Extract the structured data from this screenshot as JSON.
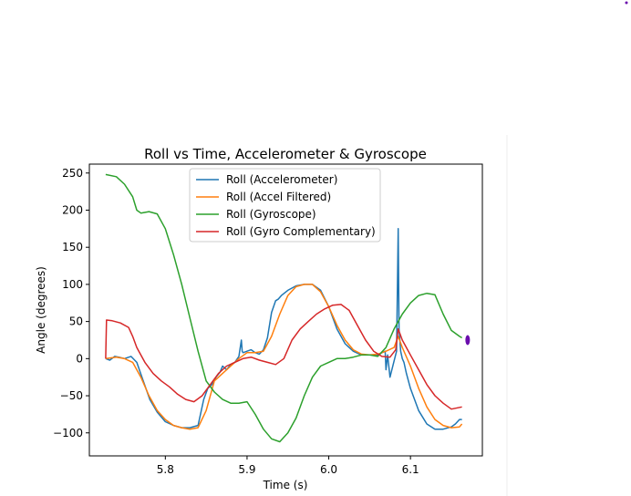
{
  "chart_data": {
    "type": "line",
    "title": "Roll vs Time, Accelerometer & Gyroscope",
    "xlabel": "Time (s)",
    "ylabel": "Angle (degrees)",
    "xlim": [
      5.707,
      6.188
    ],
    "ylim": [
      -131,
      262
    ],
    "x_ticks": [
      5.8,
      5.9,
      6.0,
      6.1
    ],
    "x_tick_labels": [
      "5.8",
      "5.9",
      "6.0",
      "6.1"
    ],
    "y_ticks": [
      -100,
      -50,
      0,
      50,
      100,
      150,
      200,
      250
    ],
    "y_tick_labels": [
      "−100",
      "−50",
      "0",
      "50",
      "100",
      "150",
      "200",
      "250"
    ],
    "grid": false,
    "legend_position": "upper-center",
    "series": [
      {
        "name": "Roll (Accelerometer)",
        "color": "#1f77b4",
        "x": [
          5.727,
          5.732,
          5.738,
          5.743,
          5.75,
          5.758,
          5.765,
          5.773,
          5.781,
          5.79,
          5.8,
          5.81,
          5.82,
          5.83,
          5.84,
          5.847,
          5.852,
          5.857,
          5.862,
          5.867,
          5.87,
          5.875,
          5.88,
          5.885,
          5.89,
          5.893,
          5.894,
          5.895,
          5.9,
          5.905,
          5.91,
          5.915,
          5.92,
          5.925,
          5.93,
          5.935,
          5.938,
          5.942,
          5.95,
          5.96,
          5.97,
          5.98,
          5.99,
          6.0,
          6.01,
          6.02,
          6.03,
          6.04,
          6.05,
          6.06,
          6.065,
          6.069,
          6.07,
          6.072,
          6.075,
          6.08,
          6.083,
          6.085,
          6.086,
          6.087,
          6.088,
          6.09,
          6.092,
          6.095,
          6.1,
          6.11,
          6.12,
          6.13,
          6.14,
          6.15,
          6.155,
          6.16,
          6.163
        ],
        "y": [
          0,
          -2,
          3,
          2,
          0,
          3,
          -5,
          -30,
          -55,
          -72,
          -85,
          -90,
          -93,
          -93,
          -90,
          -55,
          -40,
          -35,
          -25,
          -18,
          -10,
          -15,
          -8,
          -5,
          3,
          25,
          10,
          8,
          10,
          12,
          8,
          6,
          12,
          28,
          62,
          78,
          80,
          85,
          92,
          98,
          100,
          100,
          92,
          70,
          40,
          20,
          10,
          5,
          5,
          5,
          8,
          10,
          -15,
          5,
          -25,
          -3,
          10,
          175,
          40,
          25,
          10,
          0,
          -5,
          -20,
          -40,
          -70,
          -88,
          -95,
          -95,
          -92,
          -88,
          -82,
          -82
        ]
      },
      {
        "name": "Roll (Accel Filtered)",
        "color": "#ff7f0e",
        "x": [
          5.727,
          5.74,
          5.75,
          5.76,
          5.77,
          5.78,
          5.79,
          5.8,
          5.81,
          5.82,
          5.83,
          5.84,
          5.85,
          5.86,
          5.87,
          5.88,
          5.89,
          5.9,
          5.91,
          5.92,
          5.93,
          5.94,
          5.95,
          5.96,
          5.97,
          5.98,
          5.99,
          6.0,
          6.01,
          6.02,
          6.03,
          6.04,
          6.05,
          6.06,
          6.07,
          6.08,
          6.085,
          6.09,
          6.1,
          6.11,
          6.12,
          6.13,
          6.14,
          6.15,
          6.16,
          6.163
        ],
        "y": [
          0,
          2,
          0,
          -5,
          -25,
          -50,
          -70,
          -82,
          -90,
          -93,
          -95,
          -93,
          -70,
          -30,
          -20,
          -10,
          0,
          8,
          8,
          10,
          30,
          60,
          85,
          97,
          100,
          100,
          90,
          70,
          45,
          25,
          12,
          6,
          5,
          6,
          10,
          15,
          30,
          15,
          -10,
          -40,
          -65,
          -82,
          -90,
          -93,
          -92,
          -88
        ]
      },
      {
        "name": "Roll (Gyroscope)",
        "color": "#2ca02c",
        "x": [
          5.727,
          5.74,
          5.75,
          5.76,
          5.765,
          5.77,
          5.78,
          5.79,
          5.8,
          5.81,
          5.82,
          5.83,
          5.84,
          5.85,
          5.86,
          5.87,
          5.88,
          5.89,
          5.9,
          5.91,
          5.92,
          5.93,
          5.94,
          5.95,
          5.96,
          5.97,
          5.98,
          5.99,
          6.0,
          6.01,
          6.02,
          6.03,
          6.04,
          6.05,
          6.06,
          6.07,
          6.08,
          6.09,
          6.1,
          6.11,
          6.12,
          6.13,
          6.14,
          6.15,
          6.16,
          6.163
        ],
        "y": [
          248,
          245,
          235,
          218,
          200,
          196,
          198,
          195,
          175,
          140,
          100,
          55,
          10,
          -30,
          -45,
          -55,
          -60,
          -60,
          -58,
          -75,
          -95,
          -108,
          -112,
          -100,
          -80,
          -50,
          -25,
          -10,
          -5,
          0,
          0,
          2,
          5,
          5,
          3,
          15,
          40,
          60,
          75,
          85,
          88,
          86,
          60,
          38,
          30,
          28
        ]
      },
      {
        "name": "Roll (Gyro Complementary)",
        "color": "#d62728",
        "x": [
          5.727,
          5.728,
          5.735,
          5.745,
          5.755,
          5.76,
          5.765,
          5.775,
          5.785,
          5.795,
          5.805,
          5.815,
          5.825,
          5.835,
          5.845,
          5.855,
          5.865,
          5.875,
          5.885,
          5.895,
          5.905,
          5.915,
          5.925,
          5.935,
          5.945,
          5.955,
          5.965,
          5.975,
          5.985,
          5.995,
          6.005,
          6.015,
          6.025,
          6.035,
          6.045,
          6.055,
          6.065,
          6.075,
          6.082,
          6.085,
          6.09,
          6.1,
          6.11,
          6.12,
          6.13,
          6.14,
          6.15,
          6.163
        ],
        "y": [
          0,
          52,
          51,
          48,
          42,
          30,
          15,
          -5,
          -20,
          -30,
          -38,
          -48,
          -55,
          -58,
          -50,
          -35,
          -20,
          -10,
          -5,
          0,
          2,
          -2,
          -5,
          -8,
          0,
          25,
          40,
          50,
          60,
          67,
          72,
          73,
          65,
          45,
          25,
          10,
          3,
          2,
          12,
          40,
          25,
          5,
          -15,
          -35,
          -50,
          -60,
          -68,
          -65
        ]
      }
    ],
    "marker": {
      "x": 6.17,
      "y": 25,
      "color": "#6a0dad"
    }
  }
}
